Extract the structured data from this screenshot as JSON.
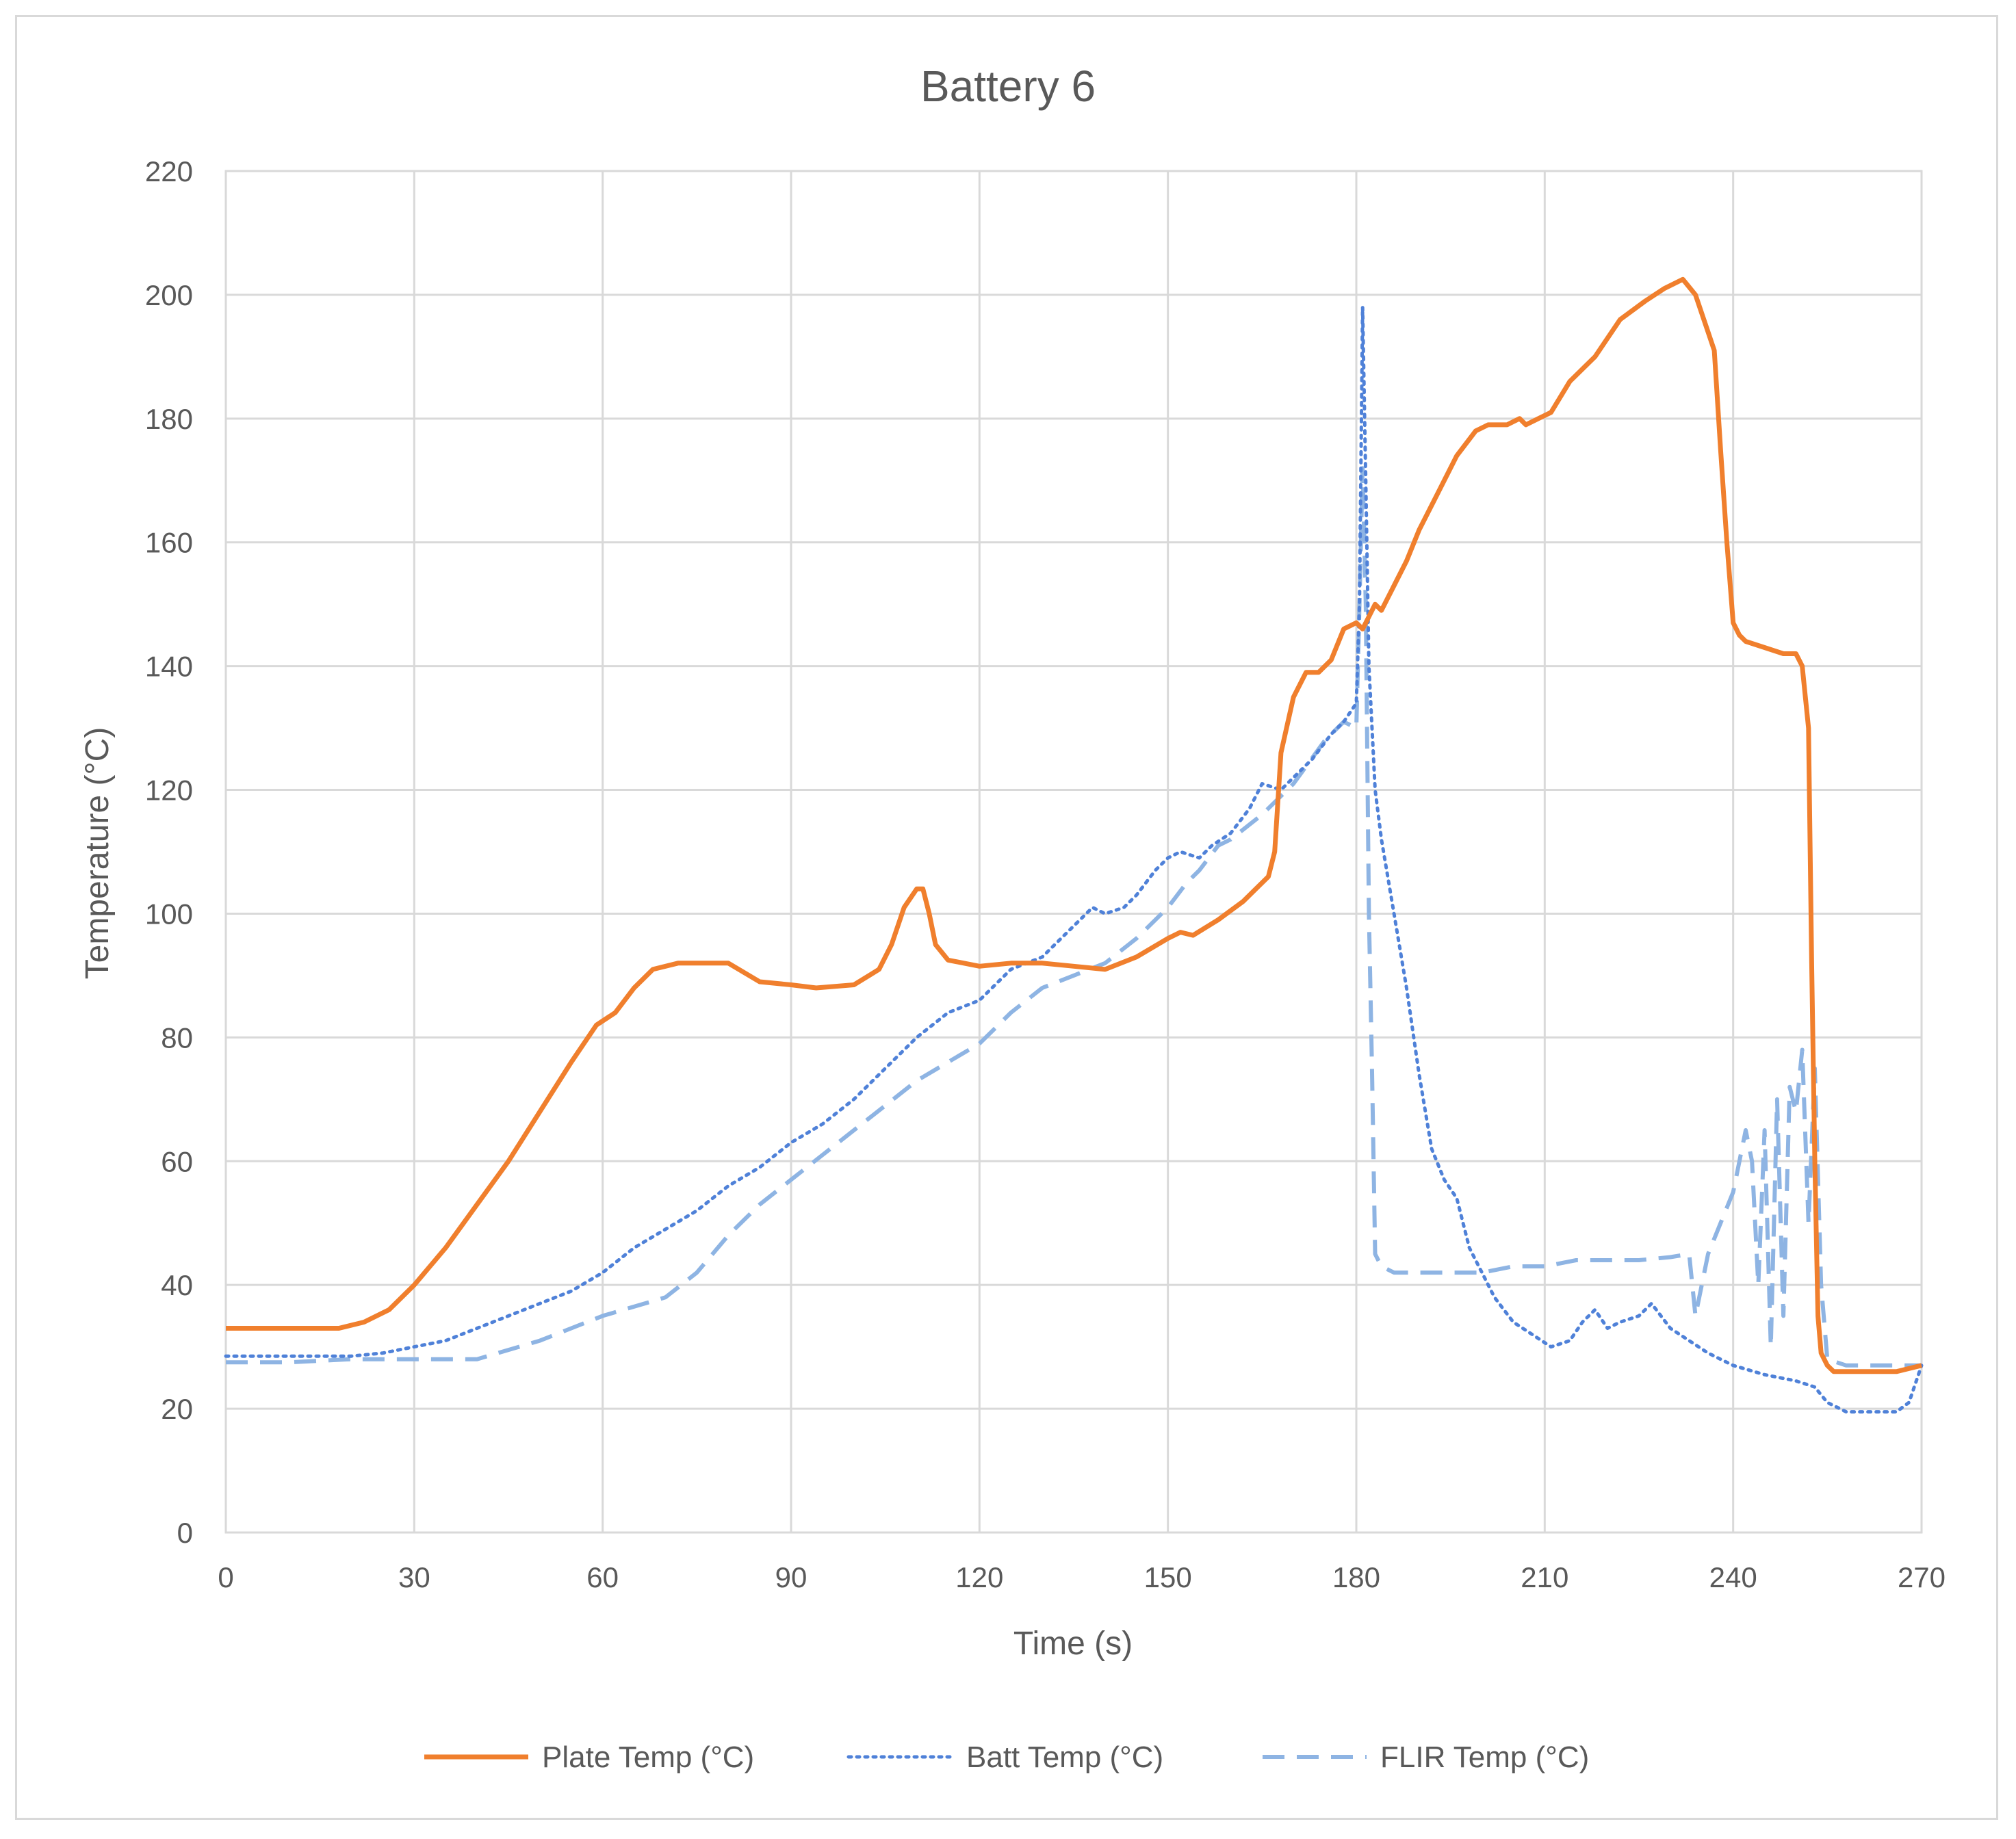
{
  "chart_data": {
    "type": "line",
    "title": "Battery 6",
    "xlabel": "Time (s)",
    "ylabel": "Temperature (°C)",
    "xlim": [
      0,
      270
    ],
    "ylim": [
      0,
      220
    ],
    "xticks": [
      "0",
      "30",
      "60",
      "90",
      "120",
      "150",
      "180",
      "210",
      "240",
      "270"
    ],
    "yticks": [
      "0",
      "20",
      "40",
      "60",
      "80",
      "100",
      "120",
      "140",
      "160",
      "180",
      "200",
      "220"
    ],
    "grid": true,
    "legend_position": "bottom",
    "series": [
      {
        "name": "Plate Temp (°C)",
        "color": "#f07f2d",
        "style": "solid",
        "x": [
          0,
          10,
          18,
          22,
          26,
          30,
          35,
          40,
          45,
          50,
          55,
          59,
          62,
          65,
          68,
          72,
          78,
          80,
          85,
          90,
          94,
          100,
          104,
          106,
          108,
          110,
          111,
          112,
          113,
          115,
          120,
          125,
          130,
          135,
          140,
          145,
          150,
          152,
          154,
          158,
          162,
          164,
          166,
          167,
          168,
          170,
          172,
          174,
          176,
          178,
          180,
          181,
          182,
          183,
          184,
          186,
          188,
          190,
          193,
          196,
          199,
          201,
          204,
          206,
          207,
          209,
          211,
          214,
          218,
          222,
          226,
          229,
          231,
          232,
          234,
          236,
          237,
          238,
          239,
          240,
          241,
          242,
          245,
          248,
          250,
          251,
          252,
          252.5,
          253,
          253.5,
          254,
          255,
          256,
          258,
          262,
          266,
          270
        ],
        "values": [
          33,
          33,
          33,
          34,
          36,
          40,
          46,
          53,
          60,
          68,
          76,
          82,
          84,
          88,
          91,
          92,
          92,
          92,
          89,
          88.5,
          88,
          88.5,
          91,
          95,
          101,
          104,
          104,
          100,
          95,
          92.5,
          91.5,
          92,
          92,
          91.5,
          91,
          93,
          96,
          97,
          96.5,
          99,
          102,
          104,
          106,
          110,
          126,
          135,
          139,
          139,
          141,
          146,
          147,
          146,
          148,
          150,
          149,
          153,
          157,
          162,
          168,
          174,
          178,
          179,
          179,
          180,
          179,
          180,
          181,
          186,
          190,
          196,
          199,
          201,
          202,
          202.5,
          200,
          194,
          191,
          175,
          160,
          147,
          145,
          144,
          143,
          142,
          142,
          140,
          130,
          92,
          60,
          35,
          29,
          27,
          26,
          26,
          26,
          26,
          27
        ]
      },
      {
        "name": "Batt Temp (°C)",
        "color": "#4f81d8",
        "style": "dotted",
        "x": [
          0,
          10,
          20,
          25,
          30,
          35,
          40,
          45,
          50,
          55,
          60,
          65,
          70,
          75,
          80,
          85,
          90,
          95,
          100,
          105,
          110,
          115,
          120,
          125,
          130,
          133,
          136,
          138,
          140,
          143,
          145,
          148,
          150,
          152,
          155,
          157,
          160,
          163,
          165,
          168,
          170,
          173,
          176,
          178,
          180,
          180.5,
          181,
          181.5,
          182,
          183,
          184,
          186,
          188,
          190,
          192,
          194,
          196,
          198,
          200,
          202,
          205,
          208,
          211,
          214,
          216,
          218,
          220,
          222,
          225,
          227,
          230,
          233,
          236,
          240,
          245,
          250,
          253,
          255,
          258,
          262,
          266,
          268,
          270
        ],
        "values": [
          28.5,
          28.5,
          28.5,
          29,
          30,
          31,
          33,
          35,
          37,
          39,
          42,
          46,
          49,
          52,
          56,
          59,
          63,
          66,
          70,
          75,
          80,
          84,
          86,
          91,
          93,
          96,
          99,
          101,
          100,
          101,
          103,
          107,
          109,
          110,
          109,
          111,
          113,
          117,
          121,
          120,
          122,
          125,
          129,
          131,
          134,
          150,
          198,
          170,
          140,
          120,
          112,
          100,
          88,
          74,
          62,
          57,
          54,
          46,
          42,
          38,
          34,
          32,
          30,
          31,
          34,
          36,
          33,
          34,
          35,
          37,
          33,
          31,
          29,
          27,
          25.5,
          24.5,
          23.5,
          21,
          19.5,
          19.5,
          19.5,
          21,
          27
        ]
      },
      {
        "name": "FLIR Temp (°C)",
        "color": "#8eb4e3",
        "style": "dashed",
        "x": [
          0,
          10,
          20,
          30,
          40,
          50,
          60,
          70,
          75,
          80,
          85,
          90,
          95,
          100,
          105,
          110,
          115,
          120,
          125,
          130,
          135,
          140,
          145,
          150,
          153,
          155,
          158,
          160,
          165,
          170,
          175,
          178,
          180,
          180.5,
          181,
          181.5,
          182,
          182.5,
          183,
          183.5,
          184,
          186,
          190,
          195,
          200,
          205,
          210,
          215,
          220,
          225,
          230,
          233,
          234,
          235,
          236,
          238,
          240,
          242,
          243,
          244,
          245,
          246,
          247,
          248,
          249,
          250,
          251,
          252,
          253,
          254,
          255,
          258,
          262,
          266,
          270
        ],
        "values": [
          27.5,
          27.5,
          28,
          28,
          28,
          31,
          35,
          38,
          42,
          48,
          53,
          57,
          61,
          65,
          69,
          73,
          76,
          79,
          84,
          88,
          90,
          92,
          96,
          101,
          105,
          107,
          111,
          112,
          116,
          121,
          128,
          131,
          130,
          150,
          172,
          150,
          100,
          75,
          45,
          44,
          43,
          42,
          42,
          42,
          42,
          43,
          43,
          44,
          44,
          44,
          44.5,
          45,
          35,
          40,
          45,
          50,
          55,
          65,
          60,
          40,
          65,
          30,
          70,
          35,
          72,
          68,
          78,
          50,
          75,
          40,
          28,
          27,
          27,
          27,
          27
        ]
      }
    ]
  }
}
